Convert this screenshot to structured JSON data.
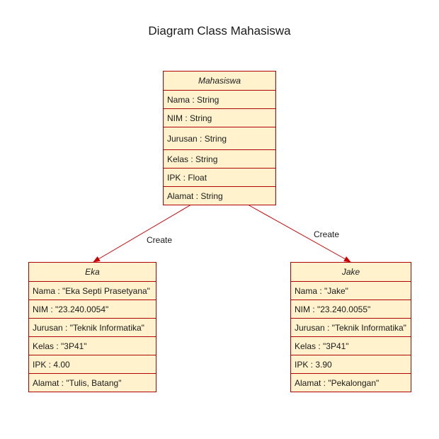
{
  "title": "Diagram Class Mahasiswa",
  "colors": {
    "fill": "#fff2cc",
    "border": "#b30000",
    "arrow": "#cc0000"
  },
  "classes": {
    "mahasiswa": {
      "name": "Mahasiswa",
      "attributes": [
        "Nama : String",
        "NIM : String",
        "Jurusan : String",
        "Kelas : String",
        "IPK : Float",
        "Alamat : String"
      ]
    },
    "eka": {
      "name": "Eka",
      "attributes": [
        "Nama : \"Eka Septi Prasetyana\"",
        "NIM : \"23.240.0054\"",
        "Jurusan : \"Teknik Informatika\"",
        "Kelas : \"3P41\"",
        "IPK : 4.00",
        "Alamat : \"Tulis, Batang\""
      ]
    },
    "jake": {
      "name": "Jake",
      "attributes": [
        "Nama : \"Jake\"",
        "NIM : \"23.240.0055\"",
        "Jurusan : \"Teknik Informatika\"",
        "Kelas : \"3P41\"",
        "IPK : 3.90",
        "Alamat : \"Pekalongan\""
      ]
    }
  },
  "edges": [
    {
      "from": "Mahasiswa",
      "to": "Eka",
      "label": "Create"
    },
    {
      "from": "Mahasiswa",
      "to": "Jake",
      "label": "Create"
    }
  ]
}
